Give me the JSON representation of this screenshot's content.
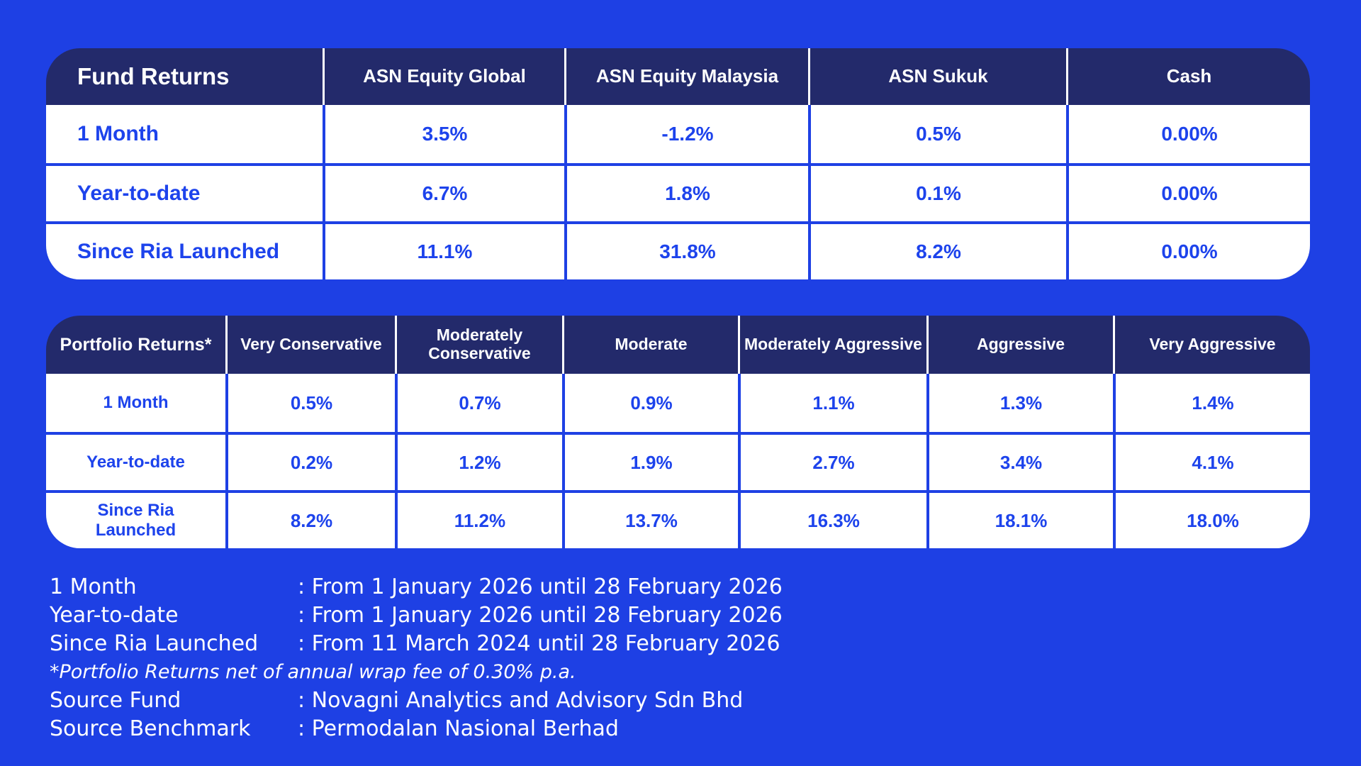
{
  "colors": {
    "background": "#1E40E4",
    "header_navy": "#232A6B",
    "value_blue": "#1D43EC",
    "cell_white": "#FFFFFF"
  },
  "fund_returns_table": {
    "title": "Fund Returns",
    "columns": [
      "ASN Equity Global",
      "ASN Equity Malaysia",
      "ASN Sukuk",
      "Cash"
    ],
    "rows": [
      {
        "label": "1 Month",
        "values": [
          "3.5%",
          "-1.2%",
          "0.5%",
          "0.00%"
        ]
      },
      {
        "label": "Year-to-date",
        "values": [
          "6.7%",
          "1.8%",
          "0.1%",
          "0.00%"
        ]
      },
      {
        "label": "Since Ria Launched",
        "values": [
          "11.1%",
          "31.8%",
          "8.2%",
          "0.00%"
        ]
      }
    ]
  },
  "portfolio_returns_table": {
    "title": "Portfolio Returns*",
    "columns": [
      "Very Conservative",
      "Moderately Conservative",
      "Moderate",
      "Moderately Aggressive",
      "Aggressive",
      "Very Aggressive"
    ],
    "rows": [
      {
        "label": "1 Month",
        "values": [
          "0.5%",
          "0.7%",
          "0.9%",
          "1.1%",
          "1.3%",
          "1.4%"
        ]
      },
      {
        "label": "Year-to-date",
        "values": [
          "0.2%",
          "1.2%",
          "1.9%",
          "2.7%",
          "3.4%",
          "4.1%"
        ]
      },
      {
        "label": "Since Ria Launched",
        "values": [
          "8.2%",
          "11.2%",
          "13.7%",
          "16.3%",
          "18.1%",
          "18.0%"
        ]
      }
    ]
  },
  "notes": [
    {
      "label": "1 Month",
      "text": ": From 1 January 2026 until 28 February 2026",
      "italic": false
    },
    {
      "label": "Year-to-date",
      "text": ": From 1 January 2026 until 28 February 2026",
      "italic": false
    },
    {
      "label": "Since Ria Launched",
      "text": ": From 11 March 2024 until 28 February 2026",
      "italic": false
    },
    {
      "label": "",
      "text": "*Portfolio Returns net of annual wrap fee of 0.30% p.a.",
      "italic": true
    },
    {
      "label": "Source Fund",
      "text": ": Novagni Analytics and Advisory Sdn Bhd",
      "italic": false
    },
    {
      "label": "Source Benchmark",
      "text": ": Permodalan Nasional Berhad",
      "italic": false
    }
  ]
}
